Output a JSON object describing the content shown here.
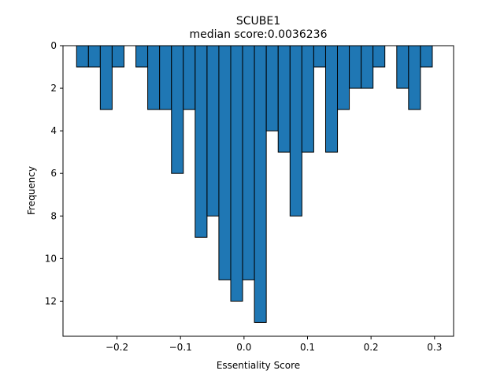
{
  "chart_data": {
    "type": "bar",
    "title": "SCUBE1",
    "subtitle": "median score:0.0036236",
    "xlabel": "Essentiality Score",
    "ylabel": "Frequency",
    "xlim": [
      -0.285,
      0.33
    ],
    "ylim": [
      13.65,
      0
    ],
    "y_axis_inverted": true,
    "grid": false,
    "bar_color": "#1f77b4",
    "edge_color": "#000000",
    "bin_width": 0.01867,
    "x_ticks": [
      -0.2,
      -0.1,
      0.0,
      0.1,
      0.2,
      0.3
    ],
    "x_tick_labels": [
      "−0.2",
      "−0.1",
      "0.0",
      "0.1",
      "0.2",
      "0.3"
    ],
    "y_ticks": [
      0,
      2,
      4,
      6,
      8,
      10,
      12
    ],
    "y_tick_labels": [
      "0",
      "2",
      "4",
      "6",
      "8",
      "10",
      "12"
    ],
    "bins": [
      {
        "x0": -0.2636,
        "value": 1
      },
      {
        "x0": -0.2449,
        "value": 1
      },
      {
        "x0": -0.2263,
        "value": 3
      },
      {
        "x0": -0.2076,
        "value": 1
      },
      {
        "x0": -0.1889,
        "value": 0
      },
      {
        "x0": -0.1702,
        "value": 1
      },
      {
        "x0": -0.1516,
        "value": 3
      },
      {
        "x0": -0.1329,
        "value": 3
      },
      {
        "x0": -0.1142,
        "value": 6
      },
      {
        "x0": -0.0956,
        "value": 3
      },
      {
        "x0": -0.0769,
        "value": 9
      },
      {
        "x0": -0.0582,
        "value": 8
      },
      {
        "x0": -0.0396,
        "value": 11
      },
      {
        "x0": -0.0209,
        "value": 12
      },
      {
        "x0": -0.0022,
        "value": 11
      },
      {
        "x0": 0.0164,
        "value": 13
      },
      {
        "x0": 0.0351,
        "value": 4
      },
      {
        "x0": 0.0538,
        "value": 5
      },
      {
        "x0": 0.0725,
        "value": 8
      },
      {
        "x0": 0.0911,
        "value": 5
      },
      {
        "x0": 0.1098,
        "value": 1
      },
      {
        "x0": 0.1285,
        "value": 5
      },
      {
        "x0": 0.1471,
        "value": 3
      },
      {
        "x0": 0.1658,
        "value": 2
      },
      {
        "x0": 0.1845,
        "value": 2
      },
      {
        "x0": 0.2031,
        "value": 1
      },
      {
        "x0": 0.2218,
        "value": 0
      },
      {
        "x0": 0.2405,
        "value": 2
      },
      {
        "x0": 0.2591,
        "value": 3
      },
      {
        "x0": 0.2778,
        "value": 1
      }
    ]
  }
}
